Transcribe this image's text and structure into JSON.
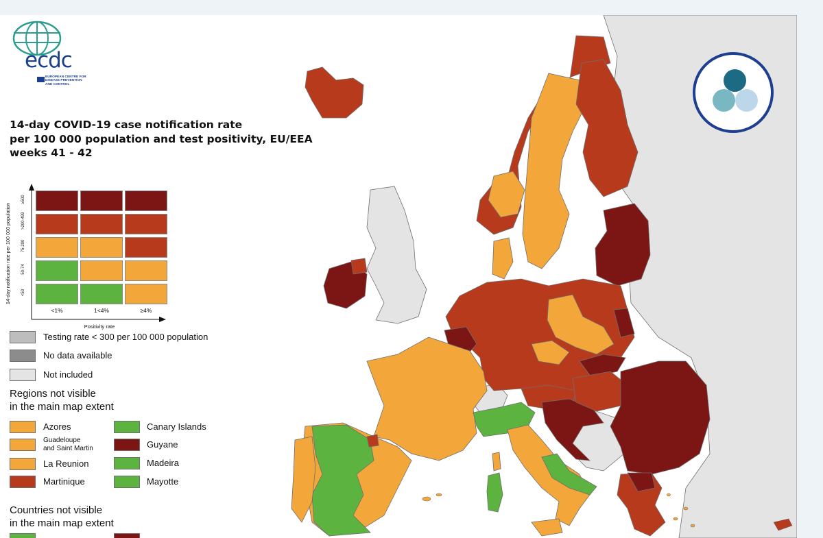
{
  "logo": {
    "wordmark": "ecdc",
    "subtitle_lines": [
      "EUROPEAN CENTRE FOR",
      "DISEASE PREVENTION",
      "AND CONTROL"
    ],
    "globe_color": "#2a9d8f",
    "brand_color": "#1a3f8f"
  },
  "title": {
    "lines": [
      "14-day COVID-19 case notification rate",
      "per 100 000 population and test positivity, EU/EEA",
      "weeks 41 - 42"
    ]
  },
  "legend_matrix": {
    "y_axis_label": "14-day notification rate per 100 000 population",
    "x_axis_label": "Positivity rate",
    "rows": [
      "≥500",
      ">200-499",
      "75-200",
      "50-74",
      "<50"
    ],
    "columns": [
      "<1%",
      "1<4%",
      "≥4%"
    ],
    "cell_levels": [
      [
        "darkred",
        "darkred",
        "darkred"
      ],
      [
        "red",
        "red",
        "red"
      ],
      [
        "orange",
        "orange",
        "red"
      ],
      [
        "green",
        "orange",
        "orange"
      ],
      [
        "green",
        "green",
        "orange"
      ]
    ]
  },
  "colors": {
    "darkred": "#7b1614",
    "red": "#b83a1d",
    "orange": "#f3a73b",
    "green": "#5db33f",
    "testing": "#bdbdbd",
    "nodata": "#8c8c8c",
    "notincluded": "#e4e4e4",
    "sea": "#ffffff",
    "border": "#6e6e6e"
  },
  "status_legend": [
    {
      "label": "Testing rate < 300 per 100 000 population",
      "color_key": "testing"
    },
    {
      "label": "No data available",
      "color_key": "nodata"
    },
    {
      "label": "Not included",
      "color_key": "notincluded"
    }
  ],
  "regions_section": {
    "heading_lines": [
      "Regions not visible",
      "in the main map extent"
    ],
    "left": [
      {
        "label": "Azores",
        "color_key": "orange"
      },
      {
        "label_lines": [
          "Guadeloupe",
          "and Saint Martin"
        ],
        "color_key": "orange"
      },
      {
        "label": "La Reunion",
        "color_key": "orange"
      },
      {
        "label": "Martinique",
        "color_key": "red"
      }
    ],
    "right": [
      {
        "label": "Canary Islands",
        "color_key": "green"
      },
      {
        "label": "Guyane",
        "color_key": "darkred"
      },
      {
        "label": "Madeira",
        "color_key": "green"
      },
      {
        "label": "Mayotte",
        "color_key": "green"
      }
    ]
  },
  "countries_section": {
    "heading_lines": [
      "Countries not visible",
      "in the main map extent"
    ]
  },
  "badge": {
    "icon": "three-circles-logo-icon",
    "dot_colors": [
      "#1d6a85",
      "#79b7c3",
      "#bcd7ea"
    ],
    "ring_color": "#1e3f8f"
  }
}
